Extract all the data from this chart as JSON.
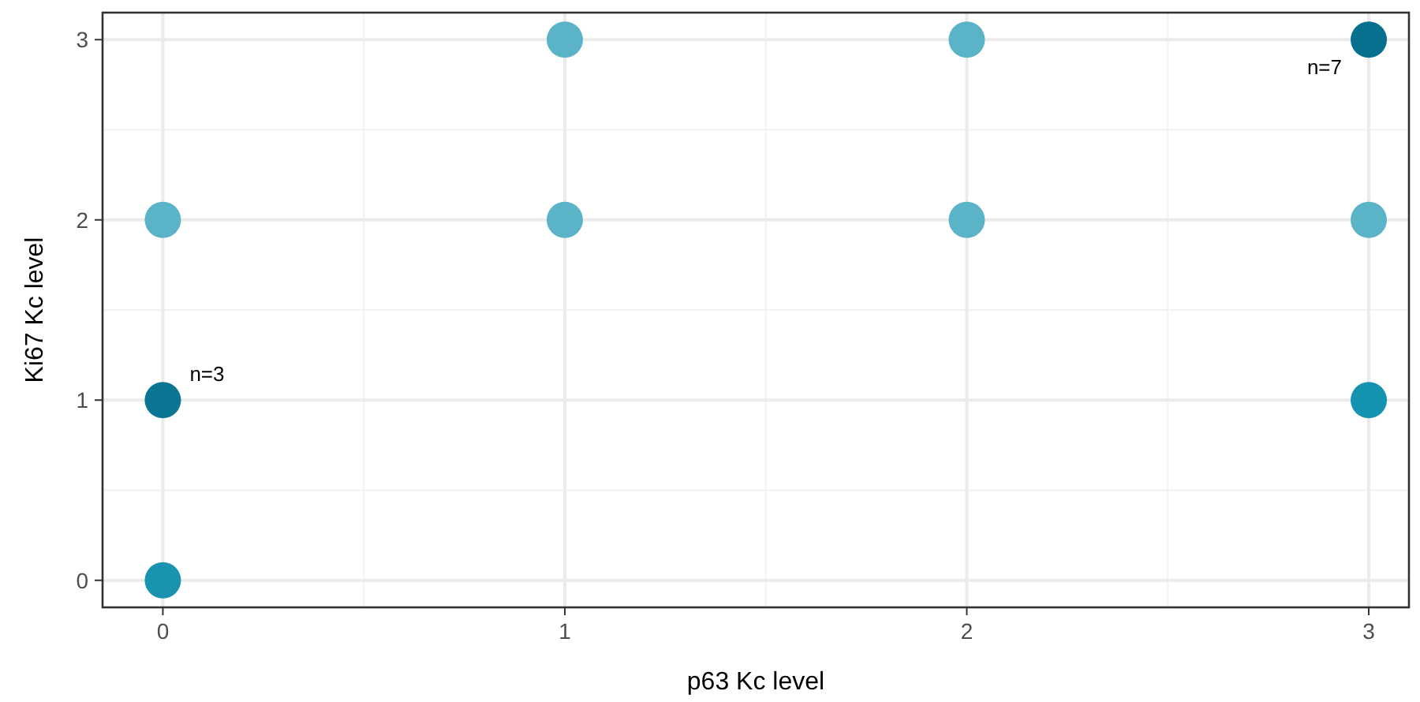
{
  "chart_data": {
    "type": "scatter",
    "xlabel": "p63 Kc level",
    "ylabel": "Ki67 Kc level",
    "x": [
      0,
      0,
      0,
      1,
      1,
      2,
      2,
      3,
      3,
      3
    ],
    "values": [
      0,
      1,
      2,
      2,
      3,
      2,
      3,
      1,
      2,
      3
    ],
    "colors": [
      "#1a93b0",
      "#0b7593",
      "#5bb3c8",
      "#5bb3c8",
      "#5bb3c8",
      "#5bb3c8",
      "#5bb3c8",
      "#1493b0",
      "#5bb3c8",
      "#08708f"
    ],
    "xlim": [
      -0.15,
      3.1
    ],
    "ylim": [
      -0.15,
      3.15
    ],
    "xticks": [
      0,
      1,
      2,
      3
    ],
    "yticks": [
      0,
      1,
      2,
      3
    ],
    "grid": true,
    "marker": "circle",
    "annotations": [
      {
        "text": "n=3",
        "x": 0,
        "y": 1
      },
      {
        "text": "n=7",
        "x": 3,
        "y": 3
      }
    ]
  }
}
